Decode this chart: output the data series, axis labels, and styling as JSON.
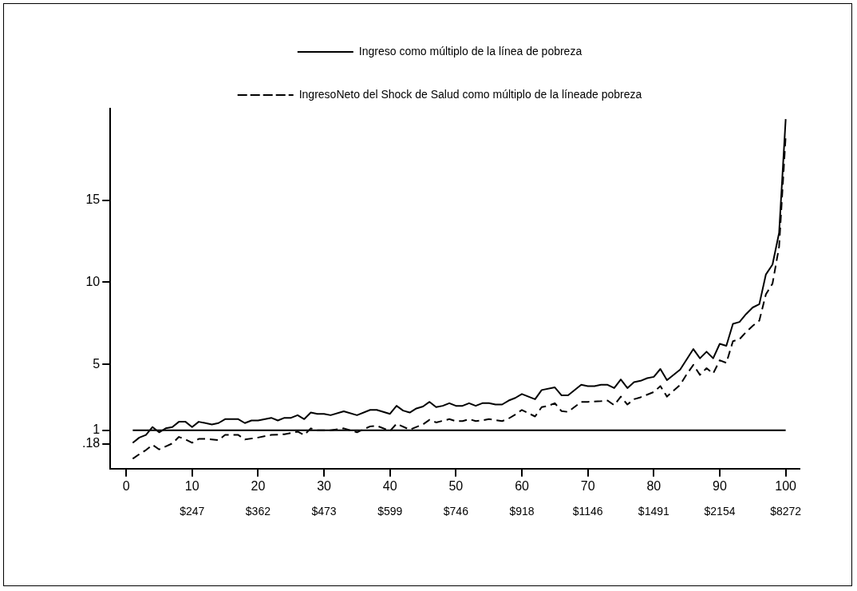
{
  "chart_data": {
    "type": "line",
    "marker": "none",
    "legend": "top",
    "series": [
      {
        "name": "Ingreso como múltiplo de la línea de pobreza",
        "color": "#000000",
        "line_style": "solid",
        "x": [
          1,
          2,
          3,
          4,
          5,
          6,
          7,
          8,
          9,
          10,
          11,
          13,
          14,
          15,
          17,
          18,
          19,
          20,
          22,
          23,
          24,
          25,
          26,
          27,
          28,
          29,
          30,
          31,
          33,
          35,
          37,
          38,
          40,
          41,
          42,
          43,
          44,
          45,
          46,
          47,
          48,
          49,
          50,
          51,
          52,
          53,
          54,
          55,
          56,
          57,
          58,
          59,
          60,
          61,
          62,
          63,
          65,
          66,
          67,
          69,
          70,
          71,
          72,
          73,
          74,
          75,
          76,
          77,
          78,
          79,
          80,
          81,
          82,
          84,
          86,
          87,
          88,
          89,
          90,
          91,
          92,
          93,
          94,
          95,
          96,
          97,
          98,
          99,
          100
        ],
        "values": [
          0.24,
          0.56,
          0.72,
          1.2,
          0.88,
          1.12,
          1.2,
          1.52,
          1.52,
          1.2,
          1.52,
          1.36,
          1.44,
          1.68,
          1.68,
          1.44,
          1.6,
          1.6,
          1.76,
          1.6,
          1.76,
          1.76,
          1.92,
          1.68,
          2.08,
          2.0,
          2.0,
          1.92,
          2.16,
          1.92,
          2.24,
          2.24,
          2.0,
          2.49,
          2.2,
          2.08,
          2.33,
          2.45,
          2.73,
          2.41,
          2.49,
          2.65,
          2.49,
          2.49,
          2.65,
          2.49,
          2.65,
          2.65,
          2.57,
          2.57,
          2.81,
          2.97,
          3.21,
          3.05,
          2.89,
          3.45,
          3.61,
          3.13,
          3.13,
          3.77,
          3.69,
          3.69,
          3.77,
          3.77,
          3.57,
          4.09,
          3.57,
          3.93,
          4.01,
          4.17,
          4.25,
          4.73,
          4.05,
          4.69,
          5.94,
          5.38,
          5.78,
          5.38,
          6.26,
          6.14,
          7.47,
          7.59,
          8.07,
          8.47,
          8.67,
          10.48,
          11.08,
          13.01,
          19.92
        ]
      },
      {
        "name": "IngresoNeto del Shock de Salud como múltiplo de la líneade pobreza",
        "color": "#000000",
        "line_style": "dashed",
        "x": [
          1,
          2,
          3,
          4,
          5,
          7,
          8,
          9,
          10,
          11,
          12,
          14,
          15,
          17,
          18,
          20,
          22,
          24,
          26,
          27,
          28,
          29,
          31,
          33,
          35,
          37,
          38,
          40,
          41,
          43,
          45,
          46,
          47,
          49,
          50,
          51,
          52,
          53,
          54,
          55,
          57,
          58,
          59,
          60,
          62,
          63,
          64,
          65,
          66,
          67,
          69,
          70,
          72,
          73,
          74,
          75,
          76,
          77,
          78,
          80,
          81,
          82,
          84,
          85,
          86,
          87,
          88,
          89,
          90,
          91,
          92,
          93,
          94,
          95,
          96,
          97,
          98,
          99,
          100
        ],
        "values": [
          -0.73,
          -0.45,
          -0.2,
          0.12,
          -0.16,
          0.2,
          0.6,
          0.44,
          0.24,
          0.48,
          0.48,
          0.4,
          0.72,
          0.72,
          0.44,
          0.56,
          0.72,
          0.76,
          0.92,
          0.72,
          1.12,
          1.0,
          1.0,
          1.12,
          0.88,
          1.24,
          1.28,
          0.96,
          1.4,
          1.04,
          1.36,
          1.64,
          1.48,
          1.68,
          1.56,
          1.56,
          1.68,
          1.56,
          1.6,
          1.68,
          1.56,
          1.72,
          1.96,
          2.24,
          1.84,
          2.41,
          2.49,
          2.65,
          2.17,
          2.12,
          2.73,
          2.73,
          2.77,
          2.81,
          2.53,
          3.05,
          2.57,
          2.89,
          3.01,
          3.33,
          3.69,
          3.05,
          3.77,
          4.41,
          4.98,
          4.37,
          4.78,
          4.45,
          5.26,
          5.1,
          6.42,
          6.54,
          6.98,
          7.35,
          7.67,
          9.27,
          9.92,
          12.16,
          18.9
        ]
      }
    ],
    "xlim": [
      -2.4,
      102.1
    ],
    "xticks": [
      0,
      10,
      20,
      30,
      40,
      50,
      60,
      70,
      80,
      90,
      100
    ],
    "annotations": [
      "$247",
      "$362",
      "$473",
      "$599",
      "$746",
      "$918",
      "$1146",
      "$1491",
      "$2154",
      "$8272"
    ],
    "ylim": [
      -1.33,
      20.56
    ],
    "yticks": [
      {
        "value": 0.18,
        "label": ".18"
      },
      1,
      5,
      10,
      15
    ],
    "ref_lines": [
      {
        "axis": "y",
        "value": 1
      }
    ]
  }
}
